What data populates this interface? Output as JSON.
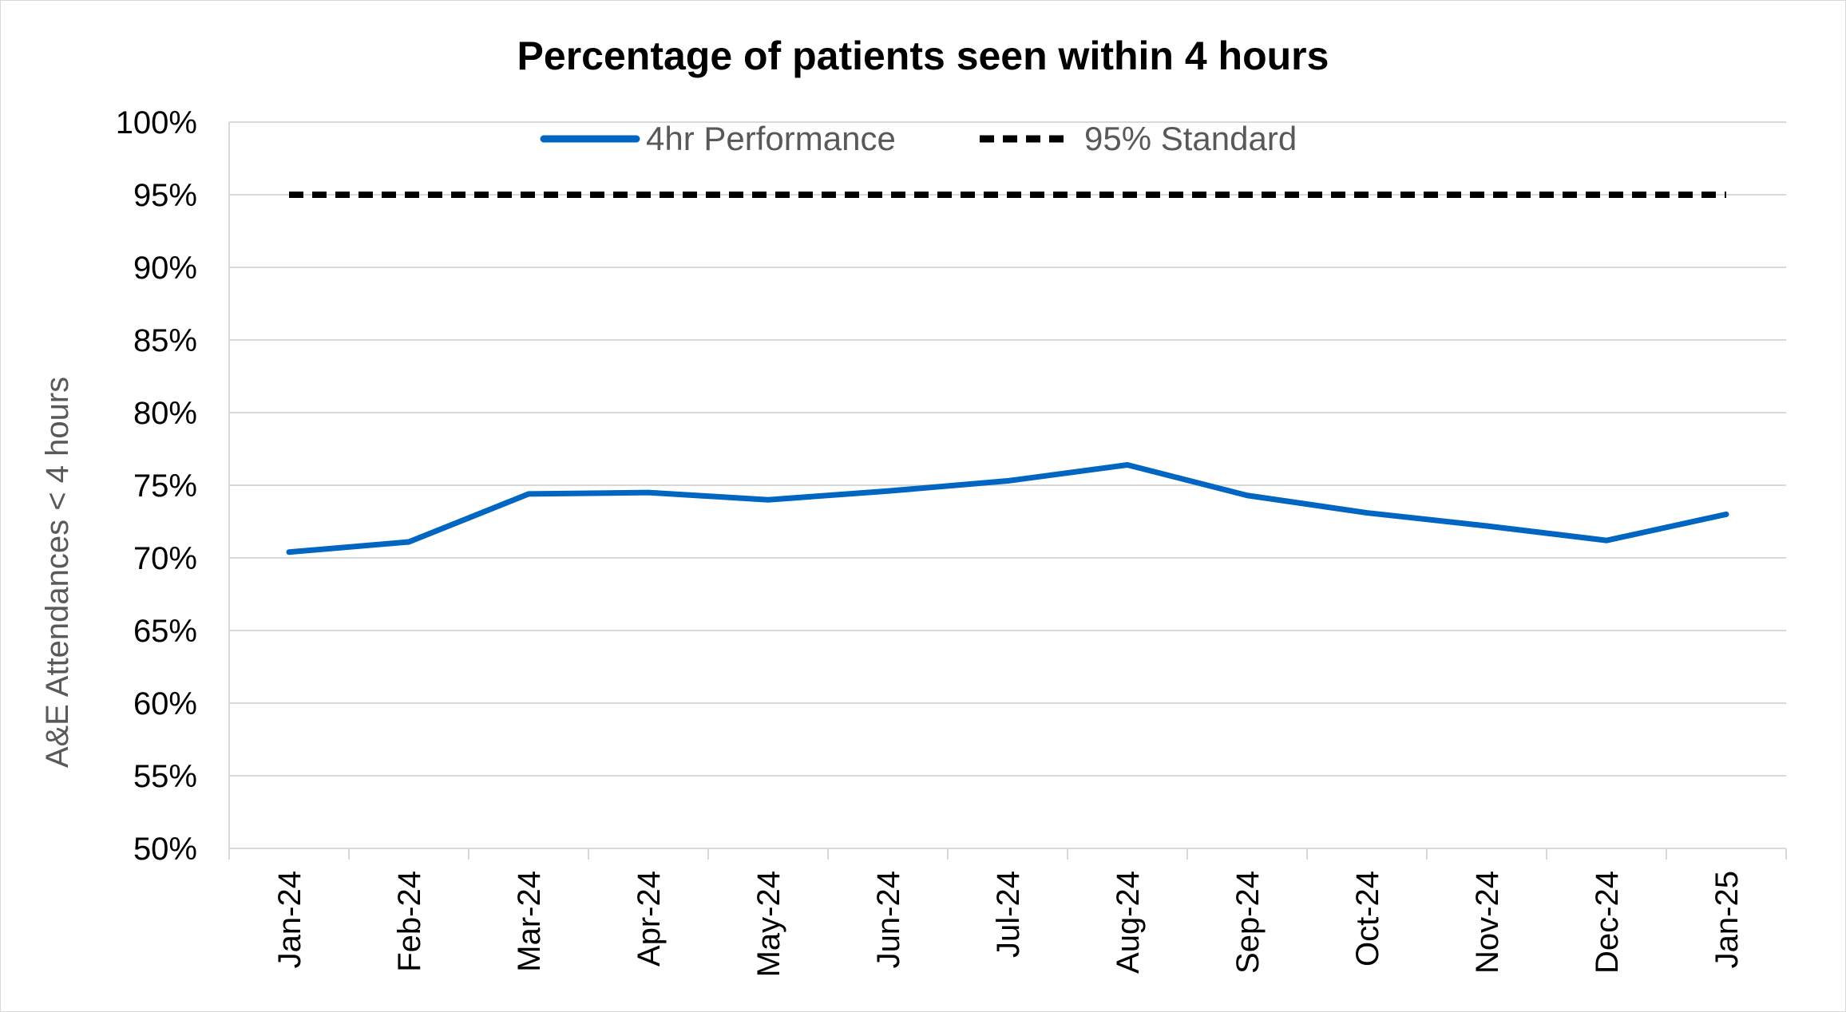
{
  "chart_data": {
    "type": "line",
    "title": "Percentage of patients seen within 4 hours",
    "xlabel": "",
    "ylabel": "A&E Attendances < 4 hours",
    "categories": [
      "Jan-24",
      "Feb-24",
      "Mar-24",
      "Apr-24",
      "May-24",
      "Jun-24",
      "Jul-24",
      "Aug-24",
      "Sep-24",
      "Oct-24",
      "Nov-24",
      "Dec-24",
      "Jan-25"
    ],
    "ylim": [
      0.5,
      1.0
    ],
    "y_ticks": [
      0.5,
      0.55,
      0.6,
      0.65,
      0.7,
      0.75,
      0.8,
      0.85,
      0.9,
      0.95,
      1.0
    ],
    "y_tick_labels": [
      "50%",
      "55%",
      "60%",
      "65%",
      "70%",
      "75%",
      "80%",
      "85%",
      "90%",
      "95%",
      "100%"
    ],
    "grid": true,
    "legend_position": "top",
    "series": [
      {
        "name": "4hr Performance",
        "color": "#0066c2",
        "style": "solid",
        "values": [
          0.704,
          0.711,
          0.744,
          0.745,
          0.74,
          0.746,
          0.753,
          0.764,
          0.743,
          0.731,
          0.722,
          0.712,
          0.73
        ]
      },
      {
        "name": "95% Standard",
        "color": "#000000",
        "style": "dashed",
        "values": [
          0.95,
          0.95,
          0.95,
          0.95,
          0.95,
          0.95,
          0.95,
          0.95,
          0.95,
          0.95,
          0.95,
          0.95,
          0.95
        ]
      }
    ]
  }
}
